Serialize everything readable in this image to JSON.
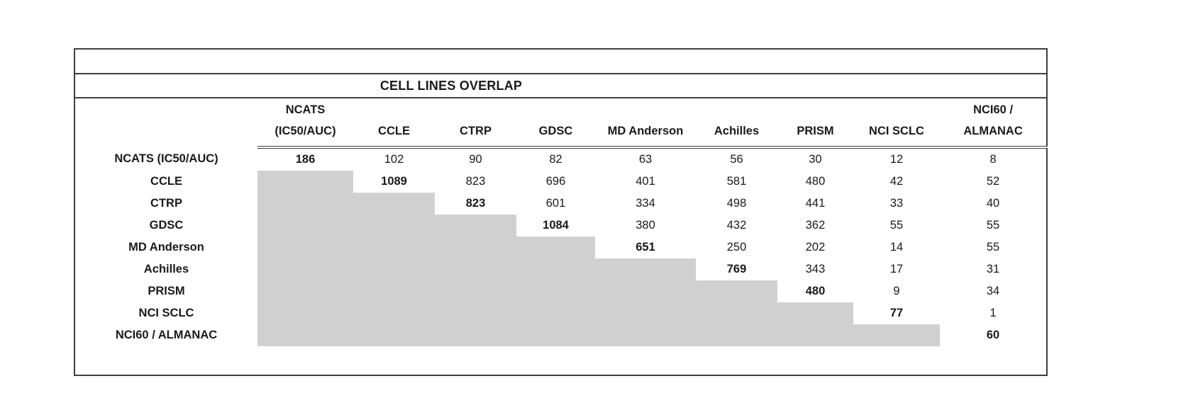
{
  "table": {
    "title": "CELL LINES OVERLAP",
    "columns": [
      {
        "label": "NCATS (IC50/AUC)",
        "lines": [
          "NCATS",
          "(IC50/AUC)"
        ]
      },
      {
        "label": "CCLE",
        "lines": [
          "CCLE"
        ]
      },
      {
        "label": "CTRP",
        "lines": [
          "CTRP"
        ]
      },
      {
        "label": "GDSC",
        "lines": [
          "GDSC"
        ]
      },
      {
        "label": "MD Anderson",
        "lines": [
          "MD Anderson"
        ]
      },
      {
        "label": "Achilles",
        "lines": [
          "Achilles"
        ]
      },
      {
        "label": "PRISM",
        "lines": [
          "PRISM"
        ]
      },
      {
        "label": "NCI SCLC",
        "lines": [
          "NCI SCLC"
        ]
      },
      {
        "label": "NCI60 / ALMANAC",
        "lines": [
          "NCI60 /",
          "ALMANAC"
        ]
      }
    ],
    "rows": [
      {
        "label": "NCATS (IC50/AUC)",
        "values": [
          "186",
          "102",
          "90",
          "82",
          "63",
          "56",
          "30",
          "12",
          "8"
        ]
      },
      {
        "label": "CCLE",
        "values": [
          null,
          "1089",
          "823",
          "696",
          "401",
          "581",
          "480",
          "42",
          "52"
        ]
      },
      {
        "label": "CTRP",
        "values": [
          null,
          null,
          "823",
          "601",
          "334",
          "498",
          "441",
          "33",
          "40"
        ]
      },
      {
        "label": "GDSC",
        "values": [
          null,
          null,
          null,
          "1084",
          "380",
          "432",
          "362",
          "55",
          "55"
        ]
      },
      {
        "label": "MD Anderson",
        "values": [
          null,
          null,
          null,
          null,
          "651",
          "250",
          "202",
          "14",
          "55"
        ]
      },
      {
        "label": "Achilles",
        "values": [
          null,
          null,
          null,
          null,
          null,
          "769",
          "343",
          "17",
          "31"
        ]
      },
      {
        "label": "PRISM",
        "values": [
          null,
          null,
          null,
          null,
          null,
          null,
          "480",
          "9",
          "34"
        ]
      },
      {
        "label": "NCI SCLC",
        "values": [
          null,
          null,
          null,
          null,
          null,
          null,
          null,
          "77",
          "1"
        ]
      },
      {
        "label": "NCI60 / ALMANAC",
        "values": [
          null,
          null,
          null,
          null,
          null,
          null,
          null,
          null,
          "60"
        ]
      }
    ],
    "colors": {
      "lower_triangle_fill": "#d0d0d0",
      "border": "#3f3f3f",
      "text": "#1a1a1a"
    }
  }
}
